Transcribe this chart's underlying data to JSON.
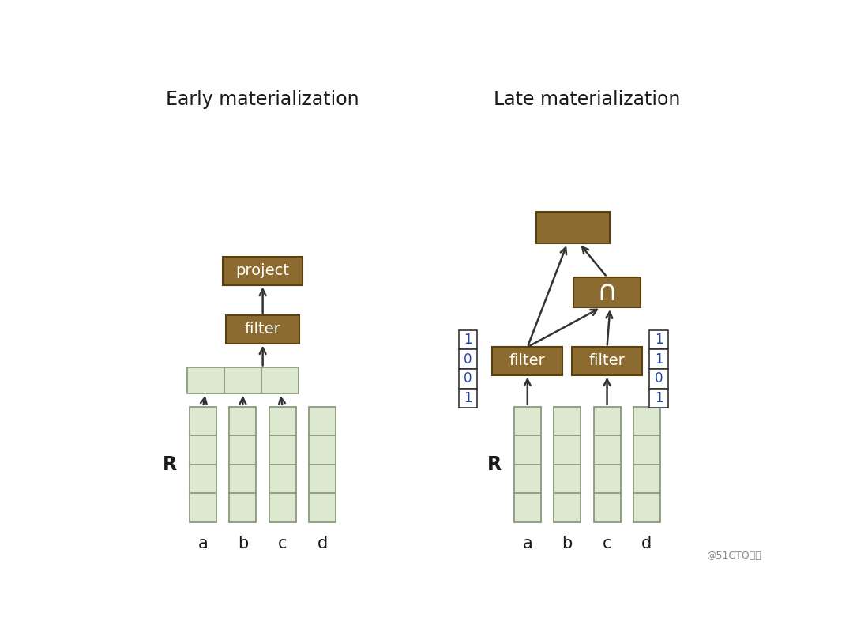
{
  "bg_color": "#ffffff",
  "title_left": "Early materialization",
  "title_right": "Late materialization",
  "title_fontsize": 17,
  "brown": "#8B6B30",
  "brown_edge": "#5a4010",
  "light_green": "#dde8d0",
  "green_edge": "#8a9a7a",
  "text_color": "#1a1a1a",
  "watermark": "@51CTO博客",
  "arrow_color": "#333333"
}
